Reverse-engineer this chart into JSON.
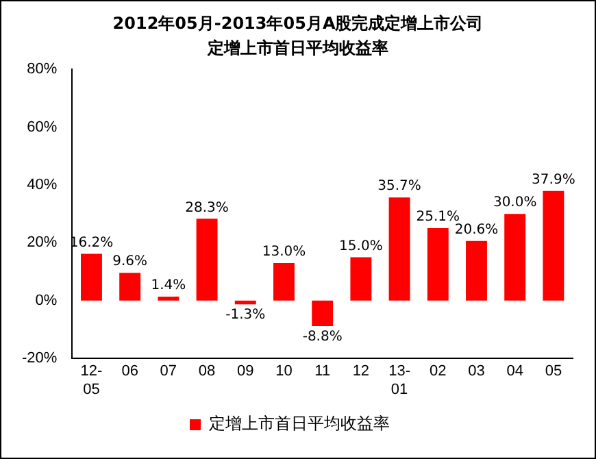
{
  "chart_data": {
    "type": "bar",
    "title": "2012年05月-2013年05月A股完成定增上市公司",
    "subtitle": "定增上市首日平均收益率",
    "categories": [
      "12-05",
      "06",
      "07",
      "08",
      "09",
      "10",
      "11",
      "12",
      "13-01",
      "02",
      "03",
      "04",
      "05"
    ],
    "series": [
      {
        "name": "定增上市首日平均收益率",
        "color": "#ff0000",
        "values": [
          16.2,
          9.6,
          1.4,
          28.3,
          -1.3,
          13.0,
          -8.8,
          15.0,
          35.7,
          25.1,
          20.6,
          30.0,
          37.9
        ],
        "value_labels": [
          "16.2%",
          "9.6%",
          "1.4%",
          "28.3%",
          "-1.3%",
          "13.0%",
          "-8.8%",
          "15.0%",
          "35.7%",
          "25.1%",
          "20.6%",
          "30.0%",
          "37.9%"
        ]
      }
    ],
    "ylim": [
      -20,
      80
    ],
    "yticks": [
      {
        "value": -20,
        "label": "-20%"
      },
      {
        "value": 0,
        "label": "0%"
      },
      {
        "value": 20,
        "label": "20%"
      },
      {
        "value": 40,
        "label": "40%"
      },
      {
        "value": 60,
        "label": "60%"
      },
      {
        "value": 80,
        "label": "80%"
      }
    ],
    "grid": false,
    "legend": "bottom"
  }
}
